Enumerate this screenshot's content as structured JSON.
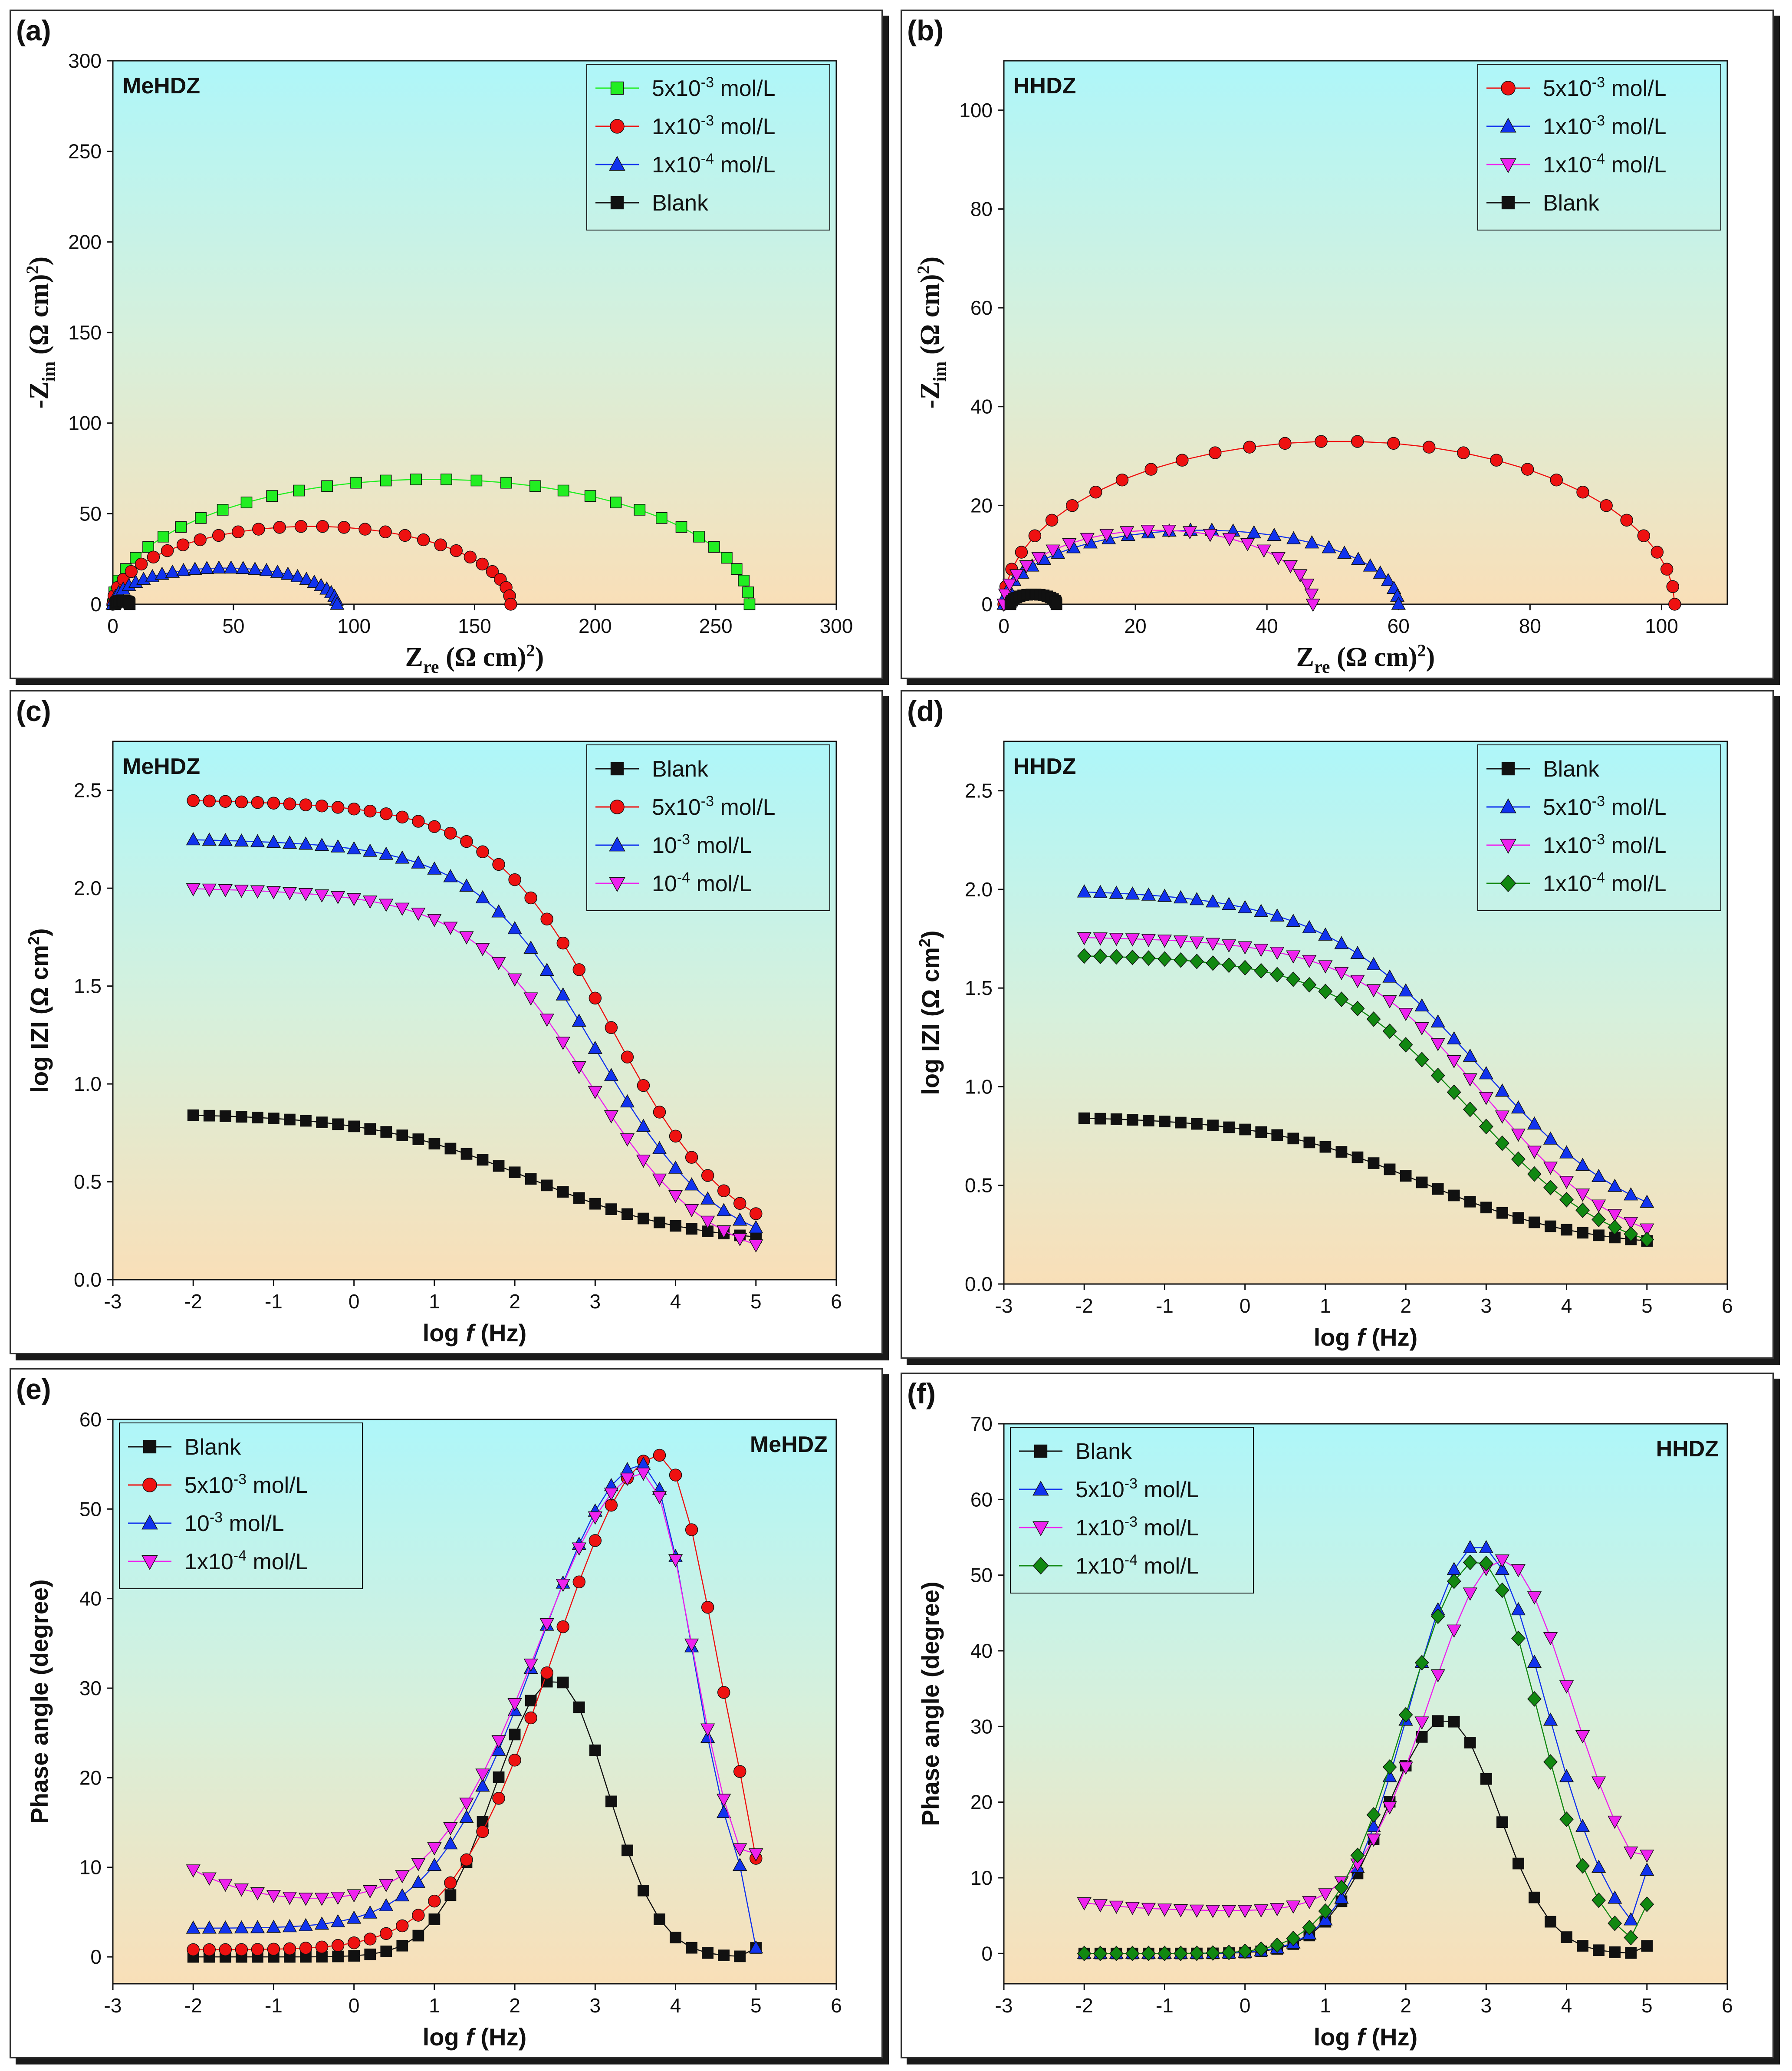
{
  "chart_data": [
    {
      "id": "a",
      "panel_label": "(a)",
      "tag": "MeHDZ",
      "type": "scatter",
      "xlabel": "Z_re (Ω cm²)",
      "ylabel": "-Z_im (Ω cm²)",
      "xlim": [
        0,
        300
      ],
      "ylim": [
        0,
        300
      ],
      "xticks": [
        0,
        50,
        100,
        150,
        200,
        250,
        300
      ],
      "yticks": [
        0,
        50,
        100,
        150,
        200,
        250,
        300
      ],
      "legend": "top-right",
      "series": [
        {
          "name": "5x10-3 mol/L",
          "legend_label": [
            "5x10",
            "-3",
            " mol/L"
          ],
          "marker": "square",
          "color": "#22ee22",
          "semicircle": [
            0,
            264,
            69,
            34
          ]
        },
        {
          "name": "1x10-3 mol/L",
          "legend_label": [
            "1x10",
            "-3",
            " mol/L"
          ],
          "marker": "circle",
          "color": "#ee1111",
          "semicircle": [
            0,
            165,
            43,
            30
          ]
        },
        {
          "name": "1x10-4 mol/L",
          "legend_label": [
            "1x10",
            "-4",
            " mol/L"
          ],
          "marker": "triangle-up",
          "color": "#1133ee",
          "semicircle": [
            0,
            93,
            20,
            30
          ]
        },
        {
          "name": "Blank",
          "legend_label": [
            "Blank"
          ],
          "marker": "square",
          "color": "#111111",
          "semicircle": [
            1,
            7,
            2,
            18
          ]
        }
      ]
    },
    {
      "id": "b",
      "panel_label": "(b)",
      "tag": "HHDZ",
      "type": "scatter",
      "xlabel": "Z_re (Ω cm²)",
      "ylabel": "-Z_im (Ω cm²)",
      "xlim": [
        0,
        110
      ],
      "ylim": [
        0,
        110
      ],
      "xticks": [
        0,
        20,
        40,
        60,
        80,
        100
      ],
      "yticks": [
        0,
        20,
        40,
        60,
        80,
        100
      ],
      "legend": "top-right",
      "series": [
        {
          "name": "5x10-3 mol/L",
          "legend_label": [
            "5x10",
            "-3",
            " mol/L"
          ],
          "marker": "circle",
          "color": "#ee1111",
          "semicircle": [
            0,
            102,
            33,
            30
          ]
        },
        {
          "name": "1x10-3 mol/L",
          "legend_label": [
            "1x10",
            "-3",
            " mol/L"
          ],
          "marker": "triangle-up",
          "color": "#1133ee",
          "semicircle": [
            0,
            60,
            15,
            30
          ]
        },
        {
          "name": "1x10-4 mol/L",
          "legend_label": [
            "1x10",
            "-4",
            " mol/L"
          ],
          "marker": "triangle-down",
          "color": "#ee22ee",
          "semicircle": [
            0,
            47,
            15,
            24
          ]
        },
        {
          "name": "Blank",
          "legend_label": [
            "Blank"
          ],
          "marker": "square",
          "color": "#111111",
          "semicircle": [
            1,
            8,
            2,
            18
          ]
        }
      ]
    },
    {
      "id": "c",
      "panel_label": "(c)",
      "tag": "MeHDZ",
      "type": "scatter",
      "xlabel": "log f (Hz)",
      "ylabel": "log IZI (Ω cm²)",
      "xlim": [
        -3,
        6
      ],
      "ylim": [
        0,
        2.75
      ],
      "xticks": [
        -3,
        -2,
        -1,
        0,
        1,
        2,
        3,
        4,
        5,
        6
      ],
      "yticks": [
        "0.0",
        "0.5",
        "1.0",
        "1.5",
        "2.0",
        "2.5"
      ],
      "legend": "top-right",
      "series": [
        {
          "name": "Blank",
          "legend_label": [
            "Blank"
          ],
          "marker": "square",
          "color": "#111111",
          "sigmoid": [
            0.85,
            0.18,
            2.2,
            1.0,
            0
          ]
        },
        {
          "name": "5x10-3 mol/L",
          "legend_label": [
            "5x10",
            "-3",
            " mol/L"
          ],
          "marker": "circle",
          "color": "#ee1111",
          "sigmoid": [
            2.45,
            0.2,
            3.2,
            0.75,
            0.05
          ]
        },
        {
          "name": "10-3 mol/L",
          "legend_label": [
            "10",
            "-3",
            "     mol/L"
          ],
          "marker": "triangle-up",
          "color": "#1133ee",
          "sigmoid": [
            2.25,
            0.17,
            3.0,
            0.75,
            0.04
          ]
        },
        {
          "name": "10-4 mol/L",
          "legend_label": [
            "10",
            "-4",
            "     mol/L"
          ],
          "marker": "triangle-down",
          "color": "#ee22ee",
          "sigmoid": [
            2.0,
            0.12,
            2.9,
            0.75,
            0.05
          ]
        }
      ]
    },
    {
      "id": "d",
      "panel_label": "(d)",
      "tag": "HHDZ",
      "type": "scatter",
      "xlabel": "log f (Hz)",
      "ylabel": "log IZI (Ω cm²)",
      "xlim": [
        -3,
        6
      ],
      "ylim": [
        0,
        2.75
      ],
      "xticks": [
        -3,
        -2,
        -1,
        0,
        1,
        2,
        3,
        4,
        5,
        6
      ],
      "yticks": [
        "0.0",
        "0.5",
        "1.0",
        "1.5",
        "2.0",
        "2.5"
      ],
      "legend": "top-right",
      "series": [
        {
          "name": "Blank",
          "legend_label": [
            "Blank"
          ],
          "marker": "square",
          "color": "#111111",
          "sigmoid": [
            0.85,
            0.18,
            2.2,
            1.0,
            0
          ]
        },
        {
          "name": "5x10-3 mol/L",
          "legend_label": [
            "5x10",
            "-3",
            " mol/L"
          ],
          "marker": "triangle-up",
          "color": "#1133ee",
          "sigmoid": [
            2.0,
            0.22,
            2.9,
            1.0,
            0
          ]
        },
        {
          "name": "1x10-3 mol/L",
          "legend_label": [
            "1x10",
            "-3",
            " mol/L"
          ],
          "marker": "triangle-down",
          "color": "#ee22ee",
          "sigmoid": [
            1.76,
            0.16,
            3.0,
            0.85,
            0.02
          ]
        },
        {
          "name": "1x10-4 mol/L",
          "legend_label": [
            "1x10",
            "-4",
            " mol/L"
          ],
          "marker": "diamond",
          "color": "#118811",
          "sigmoid": [
            1.67,
            0.1,
            2.8,
            0.9,
            0
          ]
        }
      ]
    },
    {
      "id": "e",
      "panel_label": "(e)",
      "tag": "MeHDZ",
      "type": "scatter",
      "xlabel": "log f (Hz)",
      "ylabel": "Phase angle (degree)",
      "xlim": [
        -3,
        6
      ],
      "ylim": [
        -3,
        60
      ],
      "xticks": [
        -3,
        -2,
        -1,
        0,
        1,
        2,
        3,
        4,
        5,
        6
      ],
      "yticks": [
        0,
        10,
        20,
        30,
        40,
        50,
        60
      ],
      "legend": "top-left",
      "series": [
        {
          "name": "Blank",
          "legend_label": [
            "Blank"
          ],
          "marker": "square",
          "color": "#111111",
          "peak": [
            31,
            2.5,
            0.75,
            0.65,
            0,
            0,
            1
          ]
        },
        {
          "name": "5x10-3 mol/L",
          "legend_label": [
            "5x10",
            "-3",
            " mol/L"
          ],
          "marker": "circle",
          "color": "#ee1111",
          "peak": [
            56,
            3.8,
            1.3,
            0.7,
            0.8,
            0,
            11
          ]
        },
        {
          "name": "10-3 mol/L",
          "legend_label": [
            "10",
            "-3",
            "     mol/L"
          ],
          "marker": "triangle-up",
          "color": "#1133ee",
          "peak": [
            55,
            3.6,
            1.3,
            0.6,
            3.2,
            0,
            1
          ]
        },
        {
          "name": "1x10-4 mol/L",
          "legend_label": [
            "1x10",
            "-4",
            " mol/L"
          ],
          "marker": "triangle-down",
          "color": "#ee22ee",
          "peak": [
            54,
            3.6,
            1.3,
            0.6,
            5.5,
            4.2,
            11.5
          ]
        }
      ]
    },
    {
      "id": "f",
      "panel_label": "(f)",
      "tag": "HHDZ",
      "type": "scatter",
      "xlabel": "log f (Hz)",
      "ylabel": "Phase angle (degree)",
      "xlim": [
        -3,
        6
      ],
      "ylim": [
        -4,
        70
      ],
      "xticks": [
        -3,
        -2,
        -1,
        0,
        1,
        2,
        3,
        4,
        5,
        6
      ],
      "yticks": [
        0,
        10,
        20,
        30,
        40,
        50,
        60,
        70
      ],
      "legend": "top-left",
      "series": [
        {
          "name": "Blank",
          "legend_label": [
            "Blank"
          ],
          "marker": "square",
          "color": "#111111",
          "peak": [
            31,
            2.5,
            0.75,
            0.65,
            0,
            0,
            1
          ]
        },
        {
          "name": "5x10-3 mol/L",
          "legend_label": [
            "5x10",
            "-3",
            " mol/L"
          ],
          "marker": "triangle-up",
          "color": "#1133ee",
          "peak": [
            54,
            2.9,
            0.85,
            0.85,
            0,
            0,
            11
          ]
        },
        {
          "name": "1x10-3 mol/L",
          "legend_label": [
            "1x10",
            "-3",
            " mol/L"
          ],
          "marker": "triangle-down",
          "color": "#ee22ee",
          "peak": [
            52,
            3.2,
            0.9,
            0.85,
            5.5,
            1.2,
            13
          ]
        },
        {
          "name": "1x10-4 mol/L",
          "legend_label": [
            "1x10",
            "-4",
            " mol/L"
          ],
          "marker": "diamond",
          "color": "#118811",
          "peak": [
            52,
            2.9,
            0.9,
            0.75,
            0,
            0,
            6.5
          ]
        }
      ]
    }
  ]
}
